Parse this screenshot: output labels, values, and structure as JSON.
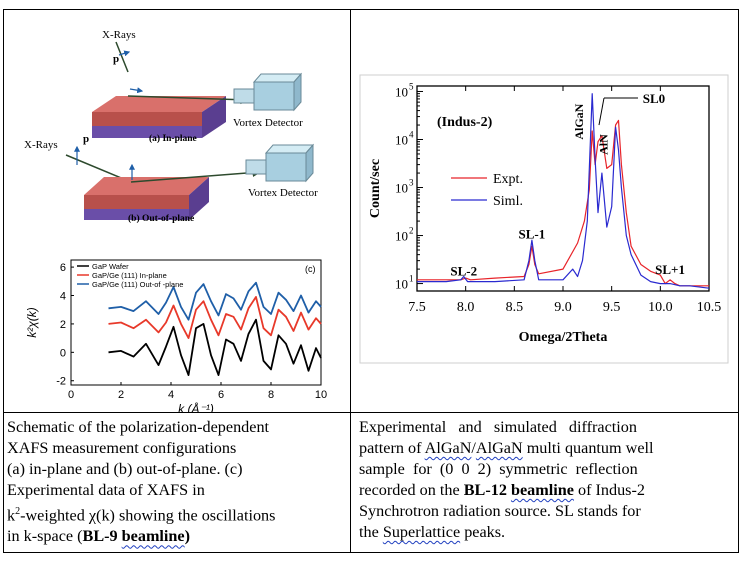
{
  "left_figure": {
    "schematic_a": {
      "xray_label": "X-Rays",
      "p_label": "p",
      "detector_label": "Vortex Detector",
      "panel_label": "(a) In-plane"
    },
    "schematic_b": {
      "xray_label": "X-Rays",
      "p_label": "p",
      "detector_label": "Vortex Detector",
      "panel_label": "(b) Out-of-plane"
    },
    "chart_data": {
      "type": "line",
      "panel_label": "(c)",
      "xlabel": "k (Å⁻¹)",
      "ylabel": "k²χ(k)",
      "xlim": [
        0,
        10
      ],
      "ylim": [
        -2.3,
        6.5
      ],
      "xticks": [
        0,
        2,
        4,
        6,
        8,
        10
      ],
      "yticks": [
        -2,
        0,
        2,
        4,
        6
      ],
      "legend_position": "top-left",
      "series": [
        {
          "name": "GaP Wafer",
          "color": "#000000",
          "x": [
            1.5,
            2.0,
            2.5,
            3.0,
            3.5,
            3.8,
            4.1,
            4.4,
            4.7,
            5.0,
            5.3,
            5.6,
            5.9,
            6.2,
            6.5,
            6.8,
            7.1,
            7.4,
            7.7,
            8.0,
            8.3,
            8.6,
            8.9,
            9.2,
            9.5,
            9.8,
            10.0
          ],
          "y": [
            0.0,
            0.1,
            -0.3,
            0.6,
            -0.9,
            0.4,
            1.8,
            -0.2,
            -1.6,
            1.7,
            2.0,
            -0.2,
            -1.6,
            0.9,
            0.6,
            -0.6,
            1.3,
            2.3,
            -0.6,
            -1.2,
            1.2,
            0.6,
            -0.8,
            0.5,
            -1.3,
            0.3,
            -0.4
          ]
        },
        {
          "name": "GaP/Ge (111) In-plane",
          "color": "#e8392a",
          "x": [
            1.5,
            2.0,
            2.5,
            3.0,
            3.5,
            3.8,
            4.1,
            4.4,
            4.7,
            5.0,
            5.3,
            5.6,
            5.9,
            6.2,
            6.5,
            6.8,
            7.1,
            7.4,
            7.7,
            8.0,
            8.3,
            8.6,
            8.9,
            9.2,
            9.5,
            9.8,
            10.0
          ],
          "y": [
            2.0,
            2.1,
            1.7,
            2.3,
            1.4,
            2.1,
            3.3,
            2.0,
            1.0,
            3.0,
            3.6,
            2.3,
            1.2,
            2.7,
            2.5,
            1.6,
            3.1,
            3.9,
            1.7,
            1.2,
            3.0,
            2.5,
            1.5,
            2.8,
            1.6,
            2.4,
            2.0
          ]
        },
        {
          "name": "GaP/Ge (111) Out-of -plane",
          "color": "#1f5fa8",
          "x": [
            1.5,
            2.0,
            2.5,
            3.0,
            3.5,
            3.8,
            4.1,
            4.4,
            4.7,
            5.0,
            5.3,
            5.6,
            5.9,
            6.2,
            6.5,
            6.8,
            7.1,
            7.4,
            7.7,
            8.0,
            8.3,
            8.6,
            8.9,
            9.2,
            9.5,
            9.8,
            10.0
          ],
          "y": [
            3.1,
            3.2,
            2.9,
            3.6,
            2.7,
            3.5,
            4.6,
            3.2,
            2.3,
            4.2,
            4.8,
            3.6,
            2.6,
            4.1,
            3.8,
            3.0,
            4.3,
            4.9,
            3.2,
            2.7,
            4.2,
            3.7,
            2.9,
            4.0,
            2.8,
            3.6,
            3.2
          ]
        }
      ]
    }
  },
  "right_figure": {
    "chart_data": {
      "type": "line",
      "annotation": "(Indus-2)",
      "xlabel": "Omega/2Theta",
      "ylabel": "Count/sec",
      "xlim": [
        7.5,
        10.5
      ],
      "ylim": [
        7,
        130000
      ],
      "yscale": "log",
      "xticks": [
        "7.5",
        "8.0",
        "8.5",
        "9.0",
        "9.5",
        "10.0",
        "10.5"
      ],
      "yticks_exponents": [
        1,
        2,
        3,
        4,
        5
      ],
      "legend_position": "center-left",
      "peak_labels": [
        {
          "text": "SL-2",
          "x": 7.98,
          "y": 11
        },
        {
          "text": "SL-1",
          "x": 8.68,
          "y": 65
        },
        {
          "text": "AlGaN",
          "x": 9.3,
          "y": 90000
        },
        {
          "text": "SL0",
          "x": 9.38,
          "y": 22000
        },
        {
          "text": "AlN",
          "x": 9.55,
          "y": 30000
        },
        {
          "text": "SL+1",
          "x": 10.1,
          "y": 12
        }
      ],
      "series": [
        {
          "name": "Expt.",
          "color": "#e8242a",
          "x": [
            7.5,
            7.8,
            7.95,
            8.0,
            8.05,
            8.3,
            8.6,
            8.65,
            8.68,
            8.71,
            8.75,
            9.0,
            9.15,
            9.22,
            9.27,
            9.3,
            9.33,
            9.36,
            9.4,
            9.45,
            9.5,
            9.54,
            9.57,
            9.6,
            9.65,
            9.7,
            9.8,
            9.9,
            10.0,
            10.05,
            10.1,
            10.15,
            10.2,
            10.3,
            10.5
          ],
          "y": [
            12,
            12,
            12,
            13,
            12,
            13,
            14,
            25,
            60,
            25,
            16,
            20,
            70,
            200,
            900,
            15000,
            3000,
            9000,
            12000,
            2500,
            3000,
            20000,
            25000,
            3000,
            300,
            60,
            25,
            18,
            15,
            10,
            12,
            10,
            9,
            9,
            9
          ]
        },
        {
          "name": "Siml.",
          "color": "#2a2ad0",
          "x": [
            7.5,
            7.8,
            7.95,
            7.98,
            8.02,
            8.3,
            8.6,
            8.65,
            8.68,
            8.71,
            8.75,
            9.0,
            9.1,
            9.15,
            9.2,
            9.25,
            9.3,
            9.33,
            9.36,
            9.4,
            9.45,
            9.5,
            9.54,
            9.57,
            9.6,
            9.65,
            9.7,
            9.8,
            9.9,
            10.0,
            10.1,
            10.2,
            10.3,
            10.5
          ],
          "y": [
            11,
            11,
            12,
            14,
            11,
            11,
            12,
            30,
            80,
            30,
            12,
            12,
            20,
            14,
            30,
            200,
            90000,
            4000,
            300,
            2000,
            150,
            400,
            18000,
            6000,
            1000,
            100,
            40,
            15,
            11,
            10,
            10,
            9,
            9,
            8
          ]
        }
      ]
    }
  },
  "captions": {
    "left": {
      "line1": "Schematic of the polarization-dependent",
      "line2": "XAFS measurement configurations",
      "line3": "(a) in-plane and (b) out-of-plane. (c)",
      "line4": "Experimental data of XAFS in",
      "line5_pre": "k",
      "line5_sup": "2",
      "line5_post": "-weighted χ(k) showing the oscillations",
      "line6_pre": "in k-space (",
      "line6_bold_a": "BL-9 ",
      "line6_bold_b": "beamline",
      "line6_post": ")"
    },
    "right": {
      "line1": "Experimental   and   simulated   diffraction",
      "line2_pre": "pattern of ",
      "line2_w1": "AlGaN",
      "line2_mid": "/",
      "line2_w2": "AlGaN",
      "line2_post": " multi quantum well",
      "line3": "sample  for  (0  0  2)  symmetric  reflection",
      "line4_pre": "recorded on the ",
      "line4_bold_a": "BL-12 ",
      "line4_bold_b": "beamline",
      "line4_post": " of Indus-2",
      "line5": "Synchrotron radiation source. SL stands for",
      "line6_pre": "the ",
      "line6_w": "Superlattice",
      "line6_post": " peaks."
    }
  }
}
